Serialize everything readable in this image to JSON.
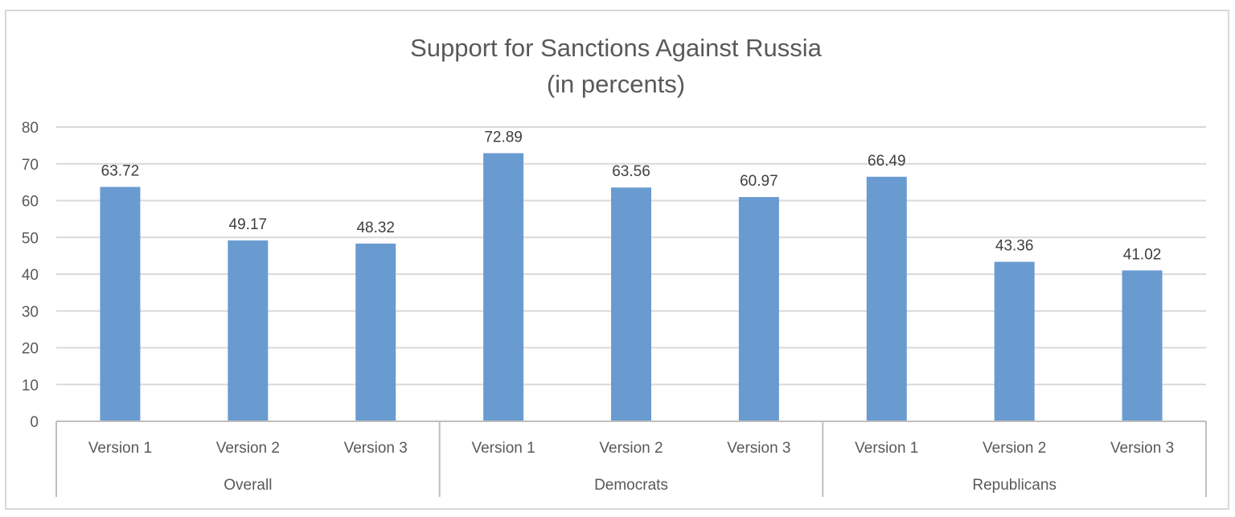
{
  "chart_data": {
    "type": "bar",
    "title": "Support for Sanctions Against Russia",
    "subtitle": "(in percents)",
    "groups": [
      {
        "name": "Overall",
        "categories": [
          "Version 1",
          "Version 2",
          "Version 3"
        ],
        "values": [
          63.72,
          49.17,
          48.32
        ]
      },
      {
        "name": "Democrats",
        "categories": [
          "Version 1",
          "Version 2",
          "Version 3"
        ],
        "values": [
          72.89,
          63.56,
          60.97
        ]
      },
      {
        "name": "Republicans",
        "categories": [
          "Version 1",
          "Version 2",
          "Version 3"
        ],
        "values": [
          66.49,
          43.36,
          41.02
        ]
      }
    ],
    "ylim": [
      0,
      80
    ],
    "yticks": [
      0,
      10,
      20,
      30,
      40,
      50,
      60,
      70,
      80
    ],
    "grid": true,
    "legend": "none",
    "bar_color": "#6a9bd0",
    "grid_color": "#d9d9d9",
    "axis_color": "#bfbfbf"
  }
}
